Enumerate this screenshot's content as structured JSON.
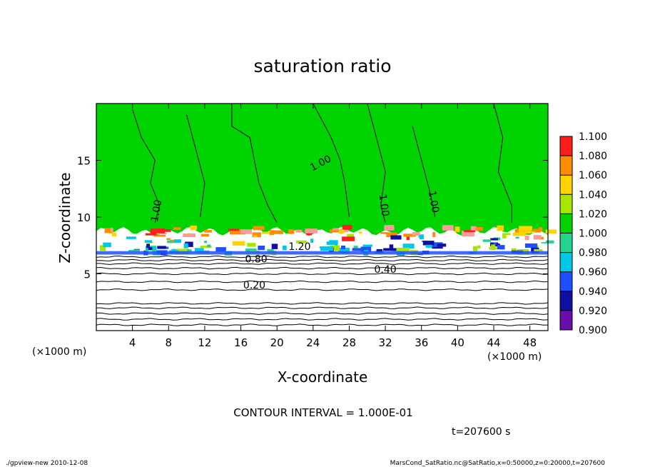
{
  "chart_data": {
    "type": "heatmap",
    "title": "saturation ratio",
    "xlabel": "X-coordinate",
    "ylabel": "Z-coordinate",
    "xunit": "(×1000 m)",
    "yunit": "(×1000 m)",
    "xlim": [
      0,
      50
    ],
    "ylim": [
      0,
      20
    ],
    "x_ticks": [
      4,
      8,
      12,
      16,
      20,
      24,
      28,
      32,
      36,
      40,
      44,
      48
    ],
    "y_ticks": [
      5,
      10,
      15
    ],
    "colorbar": {
      "levels": [
        0.9,
        0.92,
        0.94,
        0.96,
        0.98,
        1.0,
        1.02,
        1.04,
        1.06,
        1.08,
        1.1
      ],
      "labels": [
        "0.900",
        "0.920",
        "0.940",
        "0.960",
        "0.980",
        "1.000",
        "1.020",
        "1.040",
        "1.060",
        "1.080",
        "1.100"
      ],
      "colors": [
        "#6a0dad",
        "#1010a0",
        "#1e50ff",
        "#00c8e6",
        "#22d48c",
        "#00d400",
        "#a8e600",
        "#ffd200",
        "#ff8c00",
        "#ff1e1e",
        "#ff9a9a"
      ]
    },
    "contour_labels": [
      {
        "text": "1.00",
        "x": 7,
        "z": 10.5,
        "angle": -80
      },
      {
        "text": "1.00",
        "x": 25,
        "z": 14.5,
        "angle": -28
      },
      {
        "text": "1.00",
        "x": 31.5,
        "z": 11.0,
        "angle": 82
      },
      {
        "text": "1.00",
        "x": 37,
        "z": 11.3,
        "angle": 80
      },
      {
        "text": "1.20",
        "x": 22.5,
        "z": 7.1,
        "angle": 0
      },
      {
        "text": "0.80",
        "x": 17.7,
        "z": 6.0,
        "angle": 0
      },
      {
        "text": "0.40",
        "x": 32,
        "z": 5.1,
        "angle": 0
      },
      {
        "text": "0.20",
        "x": 17.5,
        "z": 3.7,
        "angle": 0
      }
    ],
    "stable_contour_levels_z": [
      0.5,
      1.0,
      1.5,
      2.0,
      2.4,
      3.6,
      4.3,
      5.0,
      5.5,
      5.9,
      6.2,
      6.5
    ]
  },
  "annotations": {
    "contour_interval": "CONTOUR INTERVAL = 1.000E-01",
    "time": "t=207600 s",
    "footer_left": "./gpview-new   2010-12-08",
    "footer_right": "MarsCond_SatRatio.nc@SatRatio,x=0:50000,z=0:20000,t=207600"
  },
  "colors": {
    "background": "#ffffff",
    "frame": "#000000",
    "saturated": "#00d400"
  }
}
